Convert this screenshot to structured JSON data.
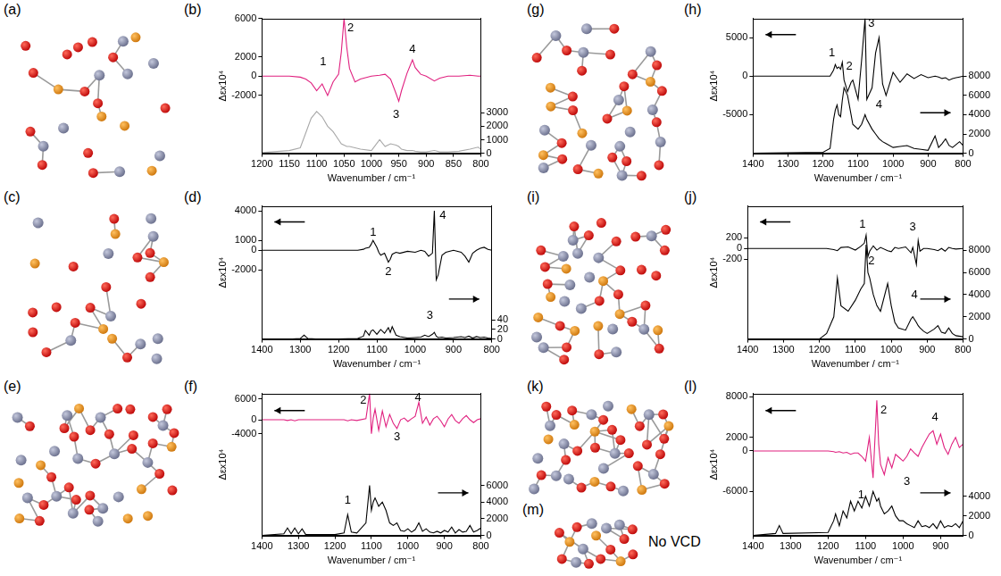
{
  "chart_data": [
    {
      "type": "line",
      "title": "(b)",
      "xlabel": "Wavenumber / cm⁻¹",
      "ylabel": "Δεx10⁴",
      "grid": false,
      "x": [
        1200,
        1150,
        1130,
        1120,
        1110,
        1100,
        1090,
        1080,
        1070,
        1060,
        1055,
        1050,
        1045,
        1040,
        1030,
        1020,
        1000,
        985,
        975,
        965,
        955,
        950,
        945,
        935,
        925,
        920,
        910,
        900,
        885,
        875,
        860,
        840,
        820,
        805,
        800
      ],
      "xlim": [
        1200,
        800
      ],
      "xticks": [
        1200,
        1150,
        1100,
        1050,
        1000,
        950,
        900,
        850,
        800
      ],
      "ylim": [
        -8000,
        6000
      ],
      "yticks": [
        -2000,
        0,
        2000,
        6000
      ],
      "y2lim": [
        0,
        10000
      ],
      "y2ticks": [
        0,
        1000,
        2000,
        3000
      ],
      "series": [
        {
          "color": "#e0207f",
          "axis": "y",
          "values": [
            0,
            0,
            -100,
            -300,
            -700,
            -1500,
            -800,
            -2000,
            -600,
            200,
            2500,
            6000,
            3000,
            800,
            -600,
            -300,
            0,
            100,
            200,
            -300,
            -1800,
            -2600,
            -1500,
            300,
            1700,
            900,
            200,
            0,
            -500,
            -200,
            0,
            0,
            100,
            0,
            0
          ]
        },
        {
          "color": "#a8a8a8",
          "axis": "y2",
          "values": [
            50,
            200,
            400,
            1500,
            2600,
            3100,
            2700,
            2000,
            1600,
            1000,
            700,
            600,
            500,
            500,
            400,
            300,
            200,
            1000,
            500,
            700,
            600,
            500,
            300,
            200,
            200,
            150,
            100,
            100,
            200,
            100,
            100,
            150,
            300,
            450,
            300
          ]
        }
      ],
      "annotations": [
        {
          "text": "1",
          "x": 1088,
          "y": 1500,
          "axis": "y"
        },
        {
          "text": "2",
          "x": 1038,
          "y": 5000,
          "axis": "y"
        },
        {
          "text": "3",
          "x": 955,
          "y": -4000,
          "axis": "y"
        },
        {
          "text": "4",
          "x": 925,
          "y": 2800,
          "axis": "y"
        }
      ]
    },
    {
      "type": "line",
      "title": "(d)",
      "xlabel": "Wavenumber / cm⁻¹",
      "ylabel": "Δεx10⁴",
      "grid": false,
      "x": [
        1400,
        1320,
        1300,
        1290,
        1280,
        1260,
        1200,
        1150,
        1135,
        1130,
        1120,
        1115,
        1110,
        1100,
        1095,
        1090,
        1080,
        1070,
        1065,
        1060,
        1050,
        1040,
        1020,
        1000,
        985,
        975,
        965,
        955,
        950,
        945,
        940,
        930,
        920,
        900,
        880,
        870,
        860,
        850,
        840,
        830,
        820,
        810,
        800
      ],
      "xlim": [
        1400,
        800
      ],
      "xticks": [
        1400,
        1300,
        1200,
        1100,
        1000,
        900,
        800
      ],
      "ylim": [
        -9000,
        4500
      ],
      "yticks": [
        -2000,
        0,
        1000,
        4000
      ],
      "y2lim": [
        0,
        280
      ],
      "y2ticks": [
        0,
        20,
        40
      ],
      "series": [
        {
          "color": "#000000",
          "axis": "y",
          "values": [
            0,
            0,
            0,
            0,
            0,
            0,
            0,
            0,
            100,
            200,
            300,
            600,
            1000,
            300,
            -200,
            -500,
            -300,
            -1200,
            -900,
            -400,
            -200,
            -300,
            -100,
            -200,
            0,
            -100,
            -600,
            -300,
            4000,
            -3000,
            -2500,
            -500,
            -200,
            0,
            -200,
            -600,
            -1200,
            -300,
            0,
            200,
            300,
            100,
            0
          ]
        },
        {
          "color": "#000000",
          "axis": "y2",
          "values": [
            0,
            0,
            1,
            8,
            1,
            0,
            0,
            1,
            6,
            18,
            8,
            17,
            19,
            10,
            15,
            20,
            12,
            24,
            14,
            26,
            8,
            5,
            2,
            3,
            4,
            8,
            5,
            10,
            14,
            6,
            3,
            4,
            2,
            3,
            5,
            3,
            6,
            2,
            5,
            3,
            4,
            2,
            1
          ]
        }
      ],
      "annotations": [
        {
          "text": "1",
          "x": 1110,
          "y": 1800,
          "axis": "y"
        },
        {
          "text": "2",
          "x": 1070,
          "y": -2200,
          "axis": "y"
        },
        {
          "text": "3",
          "x": 962,
          "y": 50,
          "axis": "y2"
        },
        {
          "text": "4",
          "x": 928,
          "y": 3500,
          "axis": "y"
        }
      ]
    },
    {
      "type": "line",
      "title": "(f)",
      "xlabel": "Wavenumber / cm⁻¹",
      "ylabel": "Δεx10⁴",
      "grid": false,
      "x": [
        1400,
        1340,
        1330,
        1320,
        1310,
        1300,
        1290,
        1280,
        1200,
        1175,
        1165,
        1155,
        1140,
        1115,
        1105,
        1100,
        1095,
        1090,
        1080,
        1070,
        1060,
        1050,
        1040,
        1030,
        1020,
        1010,
        1000,
        990,
        980,
        970,
        960,
        950,
        940,
        930,
        920,
        910,
        900,
        890,
        880,
        870,
        860,
        850,
        840,
        830,
        820,
        810,
        800
      ],
      "xlim": [
        1400,
        800
      ],
      "xticks": [
        1400,
        1300,
        1200,
        1100,
        1000,
        900,
        800
      ],
      "ylim": [
        -33000,
        7500
      ],
      "yticks": [
        -4000,
        0,
        6000
      ],
      "y2lim": [
        0,
        17000
      ],
      "y2ticks": [
        0,
        2000,
        4000,
        6000
      ],
      "series": [
        {
          "color": "#e0207f",
          "axis": "y",
          "values": [
            0,
            0,
            -200,
            0,
            -300,
            0,
            0,
            0,
            0,
            0,
            -300,
            0,
            -200,
            300,
            7500,
            -4000,
            500,
            3000,
            -3000,
            2500,
            -2000,
            1500,
            -1000,
            -2500,
            0,
            500,
            -500,
            300,
            1000,
            5000,
            -1000,
            800,
            -1500,
            300,
            1000,
            -300,
            -2000,
            200,
            1500,
            -200,
            -1000,
            300,
            1200,
            0,
            -800,
            0,
            300
          ]
        },
        {
          "color": "#000000",
          "axis": "y2",
          "values": [
            0,
            200,
            900,
            200,
            900,
            200,
            800,
            100,
            100,
            300,
            2500,
            400,
            300,
            1500,
            6000,
            3000,
            4000,
            4500,
            3500,
            4000,
            3000,
            1500,
            1200,
            1500,
            600,
            500,
            800,
            400,
            700,
            1500,
            500,
            800,
            400,
            300,
            500,
            300,
            600,
            400,
            1000,
            300,
            700,
            400,
            500,
            1200,
            400,
            600,
            900
          ]
        }
      ],
      "annotations": [
        {
          "text": "1",
          "x": 1165,
          "y": 4200,
          "axis": "y2"
        },
        {
          "text": "2",
          "x": 1122,
          "y": 5500,
          "axis": "y"
        },
        {
          "text": "3",
          "x": 1030,
          "y": -5000,
          "axis": "y"
        },
        {
          "text": "4",
          "x": 972,
          "y": 6200,
          "axis": "y"
        }
      ]
    },
    {
      "type": "line",
      "title": "(h)",
      "xlabel": "Wavenumber / cm⁻¹",
      "ylabel": "Δεx10⁴",
      "grid": false,
      "x": [
        1400,
        1200,
        1180,
        1170,
        1165,
        1160,
        1155,
        1150,
        1145,
        1140,
        1130,
        1120,
        1115,
        1100,
        1090,
        1080,
        1075,
        1060,
        1050,
        1040,
        1030,
        1020,
        1000,
        980,
        960,
        940,
        920,
        900,
        880,
        870,
        860,
        850,
        840,
        830,
        820,
        810,
        800
      ],
      "xlim": [
        1400,
        800
      ],
      "xticks": [
        1400,
        1300,
        1200,
        1100,
        1000,
        900,
        800
      ],
      "ylim": [
        -10000,
        7500
      ],
      "yticks": [
        -5000,
        0,
        5000
      ],
      "y2lim": [
        0,
        14000
      ],
      "y2ticks": [
        0,
        2000,
        4000,
        6000,
        8000
      ],
      "series": [
        {
          "color": "#000000",
          "axis": "y",
          "values": [
            0,
            0,
            0,
            800,
            1500,
            1000,
            1200,
            900,
            1800,
            -500,
            -2000,
            -800,
            -500,
            -3000,
            2000,
            7500,
            -3000,
            -1500,
            3000,
            5000,
            -1000,
            -2500,
            500,
            -800,
            300,
            -300,
            200,
            -200,
            0,
            -100,
            -300,
            -200,
            -500,
            -300,
            -200,
            -100,
            0
          ]
        },
        {
          "color": "#000000",
          "axis": "y2",
          "values": [
            0,
            100,
            500,
            3500,
            4500,
            5000,
            4000,
            3800,
            5500,
            6800,
            6000,
            4000,
            3000,
            2500,
            3000,
            4000,
            3500,
            2500,
            2000,
            1500,
            1200,
            1000,
            600,
            700,
            800,
            500,
            400,
            300,
            1800,
            600,
            1000,
            1500,
            800,
            600,
            900,
            1200,
            800
          ]
        }
      ],
      "annotations": [
        {
          "text": "1",
          "x": 1175,
          "y": 3000,
          "axis": "y"
        },
        {
          "text": "2",
          "x": 1125,
          "y": 9000,
          "axis": "y2"
        },
        {
          "text": "3",
          "x": 1062,
          "y": 6800,
          "axis": "y"
        },
        {
          "text": "4",
          "x": 1040,
          "y": 5000,
          "axis": "y2"
        }
      ]
    },
    {
      "type": "line",
      "title": "(j)",
      "xlabel": "Wavenumber / cm⁻¹",
      "ylabel": "Δεx10⁴",
      "grid": false,
      "x": [
        1400,
        1200,
        1180,
        1160,
        1150,
        1140,
        1120,
        1100,
        1085,
        1075,
        1070,
        1065,
        1060,
        1050,
        1040,
        1030,
        1010,
        1000,
        990,
        980,
        960,
        945,
        940,
        930,
        925,
        920,
        910,
        900,
        880,
        870,
        860,
        850,
        840,
        830,
        820,
        800
      ],
      "xlim": [
        1400,
        800
      ],
      "xticks": [
        1400,
        1300,
        1200,
        1100,
        1000,
        900,
        800
      ],
      "ylim": [
        -1700,
        800
      ],
      "yticks": [
        -200,
        0,
        200
      ],
      "y2lim": [
        0,
        12000
      ],
      "y2ticks": [
        0,
        2000,
        4000,
        6000,
        8000
      ],
      "series": [
        {
          "color": "#000000",
          "axis": "y",
          "values": [
            0,
            0,
            0,
            -20,
            -40,
            20,
            30,
            -30,
            40,
            100,
            250,
            -150,
            -50,
            50,
            -30,
            20,
            -40,
            -60,
            20,
            0,
            30,
            -80,
            20,
            -300,
            150,
            -50,
            0,
            0,
            -20,
            -40,
            0,
            -50,
            20,
            0,
            -10,
            0
          ]
        },
        {
          "color": "#000000",
          "axis": "y2",
          "values": [
            0,
            0,
            500,
            2000,
            5500,
            3000,
            2500,
            3500,
            4500,
            5000,
            8500,
            6000,
            5500,
            4000,
            3000,
            2500,
            5000,
            3000,
            1500,
            1000,
            800,
            1800,
            2000,
            1500,
            1200,
            1000,
            700,
            500,
            900,
            1200,
            600,
            500,
            1000,
            500,
            300,
            200
          ]
        }
      ],
      "annotations": [
        {
          "text": "1",
          "x": 1080,
          "y": 450,
          "axis": "y"
        },
        {
          "text": "2",
          "x": 1055,
          "y": 7000,
          "axis": "y2"
        },
        {
          "text": "3",
          "x": 940,
          "y": 400,
          "axis": "y"
        },
        {
          "text": "4",
          "x": 935,
          "y": 4000,
          "axis": "y2"
        }
      ]
    },
    {
      "type": "line",
      "title": "(l)",
      "xlabel": "Wavenumber / cm⁻¹",
      "ylabel": "Δεx10⁴",
      "grid": false,
      "x": [
        1400,
        1340,
        1330,
        1320,
        1200,
        1185,
        1180,
        1170,
        1160,
        1150,
        1140,
        1130,
        1120,
        1110,
        1100,
        1090,
        1080,
        1070,
        1065,
        1060,
        1050,
        1040,
        1030,
        1020,
        1010,
        1000,
        990,
        980,
        970,
        960,
        950,
        940,
        930,
        920,
        910,
        900,
        890,
        880,
        870,
        860,
        850,
        840
      ],
      "xlim": [
        1400,
        840
      ],
      "xticks": [
        1400,
        1300,
        1200,
        1100,
        1000,
        900
      ],
      "ylim": [
        -12500,
        8500
      ],
      "yticks": [
        -6000,
        0,
        2000,
        8000
      ],
      "y2lim": [
        0,
        14500
      ],
      "y2ticks": [
        0,
        2000,
        4000
      ],
      "series": [
        {
          "color": "#e0207f",
          "axis": "y",
          "values": [
            0,
            0,
            0,
            0,
            0,
            -100,
            -200,
            -100,
            -300,
            -200,
            -500,
            -300,
            -300,
            -800,
            -1500,
            2000,
            -4000,
            7500,
            1000,
            -2000,
            -3500,
            -1000,
            -2500,
            -500,
            -1000,
            -1500,
            -800,
            300,
            -300,
            -800,
            500,
            1500,
            2500,
            3000,
            1000,
            2500,
            500,
            -500,
            1000,
            2000,
            500,
            1000
          ]
        },
        {
          "color": "#000000",
          "axis": "y2",
          "values": [
            0,
            200,
            1000,
            200,
            300,
            1500,
            2200,
            1000,
            2500,
            1800,
            3500,
            2500,
            3500,
            2800,
            4000,
            3000,
            4500,
            3500,
            3800,
            3000,
            2200,
            2500,
            3000,
            2000,
            1500,
            1500,
            1200,
            1000,
            800,
            1500,
            900,
            1000,
            800,
            1200,
            700,
            1500,
            800,
            1000,
            900,
            1200,
            800,
            1500
          ]
        }
      ],
      "annotations": [
        {
          "text": "1",
          "x": 1112,
          "y": -6500,
          "axis": "y"
        },
        {
          "text": "2",
          "x": 1052,
          "y": 6000,
          "axis": "y"
        },
        {
          "text": "3",
          "x": 990,
          "y": -4500,
          "axis": "y"
        },
        {
          "text": "4",
          "x": 915,
          "y": 5000,
          "axis": "y"
        }
      ]
    }
  ],
  "structures": [
    {
      "label": "(a)"
    },
    {
      "label": "(c)"
    },
    {
      "label": "(e)"
    },
    {
      "label": "(g)"
    },
    {
      "label": "(i)"
    },
    {
      "label": "(k)"
    },
    {
      "label": "(m)",
      "caption": "No VCD"
    }
  ]
}
